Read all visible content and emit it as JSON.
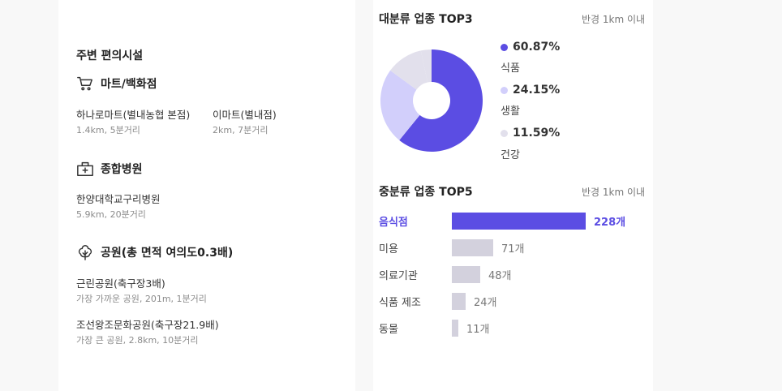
{
  "facilities": {
    "title": "주변 편의시설",
    "mart": {
      "heading": "마트/백화점",
      "items": [
        {
          "name": "하나로마트(별내농협 본점)",
          "meta": "1.4km, 5분거리"
        },
        {
          "name": "이마트(별내점)",
          "meta": "2km, 7분거리"
        }
      ]
    },
    "hospital": {
      "heading": "종합병원",
      "items": [
        {
          "name": "한양대학교구리병원",
          "meta": "5.9km, 20분거리"
        }
      ]
    },
    "park": {
      "heading": "공원(총 면적 여의도0.3배)",
      "items": [
        {
          "name": "근린공원(축구장3배)",
          "meta": "가장 가까운 공원, 201m, 1분거리"
        },
        {
          "name": "조선왕조문화공원(축구장21.9배)",
          "meta": "가장 큰 공원, 2.8km, 10분거리"
        }
      ]
    }
  },
  "top3": {
    "title": "대분류 업종 TOP3",
    "radius": "반경 1km 이내",
    "legend": [
      {
        "pct": "60.87%",
        "label": "식품"
      },
      {
        "pct": "24.15%",
        "label": "생활"
      },
      {
        "pct": "11.59%",
        "label": "건강"
      }
    ]
  },
  "top5": {
    "title": "중분류 업종 TOP5",
    "radius": "반경 1km 이내",
    "rows": [
      {
        "label": "음식점",
        "value": "228개"
      },
      {
        "label": "미용",
        "value": "71개"
      },
      {
        "label": "의료기관",
        "value": "48개"
      },
      {
        "label": "식품 제조",
        "value": "24개"
      },
      {
        "label": "동물",
        "value": "11개"
      }
    ]
  },
  "colors": {
    "accent": "#5b4de3",
    "second": "#d2cffb",
    "third": "#e2e0ec",
    "bar_gray": "#d3d1dd"
  },
  "chart_data": [
    {
      "type": "pie",
      "categories": [
        "식품",
        "생활",
        "건강"
      ],
      "values": [
        60.87,
        24.15,
        11.59
      ],
      "title": "대분류 업종 TOP3"
    },
    {
      "type": "bar",
      "categories": [
        "음식점",
        "미용",
        "의료기관",
        "식품 제조",
        "동물"
      ],
      "values": [
        228,
        71,
        48,
        24,
        11
      ],
      "title": "중분류 업종 TOP5"
    }
  ]
}
